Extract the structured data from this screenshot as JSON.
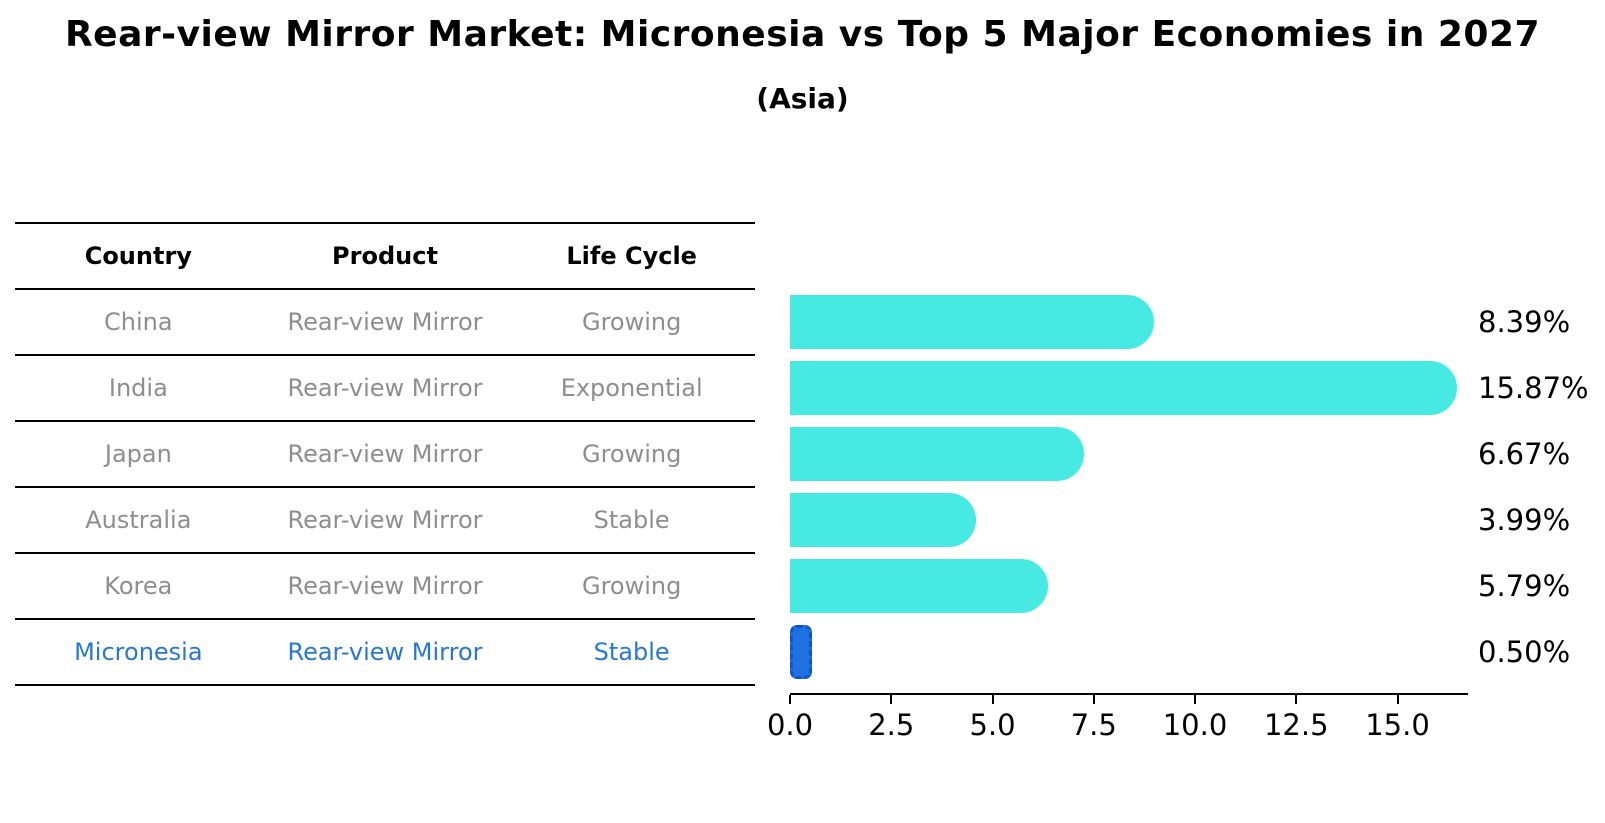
{
  "title": "Rear-view Mirror Market: Micronesia vs Top 5 Major Economies in 2027",
  "subtitle": "(Asia)",
  "table": {
    "headers": [
      "Country",
      "Product",
      "Life Cycle"
    ],
    "rows": [
      {
        "country": "China",
        "product": "Rear-view Mirror",
        "life_cycle": "Growing",
        "highlight": false
      },
      {
        "country": "India",
        "product": "Rear-view Mirror",
        "life_cycle": "Exponential",
        "highlight": false
      },
      {
        "country": "Japan",
        "product": "Rear-view Mirror",
        "life_cycle": "Growing",
        "highlight": false
      },
      {
        "country": "Australia",
        "product": "Rear-view Mirror",
        "life_cycle": "Stable",
        "highlight": false
      },
      {
        "country": "Korea",
        "product": "Rear-view Mirror",
        "life_cycle": "Growing",
        "highlight": false
      },
      {
        "country": "Micronesia",
        "product": "Rear-view Mirror",
        "life_cycle": "Stable",
        "highlight": true
      }
    ]
  },
  "chart_data": {
    "type": "bar",
    "orientation": "horizontal",
    "title": "Rear-view Mirror Market: Micronesia vs Top 5 Major Economies in 2027 (Asia)",
    "categories": [
      "China",
      "India",
      "Japan",
      "Australia",
      "Korea",
      "Micronesia"
    ],
    "values": [
      8.39,
      15.87,
      6.67,
      3.99,
      5.79,
      0.5
    ],
    "value_labels": [
      "8.39%",
      "15.87%",
      "6.67%",
      "3.99%",
      "5.79%",
      "0.50%"
    ],
    "x_tick_labels": [
      "0.0",
      "2.5",
      "5.0",
      "7.5",
      "10.0",
      "12.5",
      "15.0"
    ],
    "x_tick_values": [
      0,
      2.5,
      5,
      7.5,
      10,
      12.5,
      15
    ],
    "xlim": [
      0,
      16.7
    ],
    "grid": false,
    "legend": false,
    "bar_color": "#47e9e3",
    "highlight_color": "#1f70e0",
    "highlight_border_color": "#1253cc",
    "highlight_index": 5,
    "highlight_text_color": "#2878cf"
  }
}
